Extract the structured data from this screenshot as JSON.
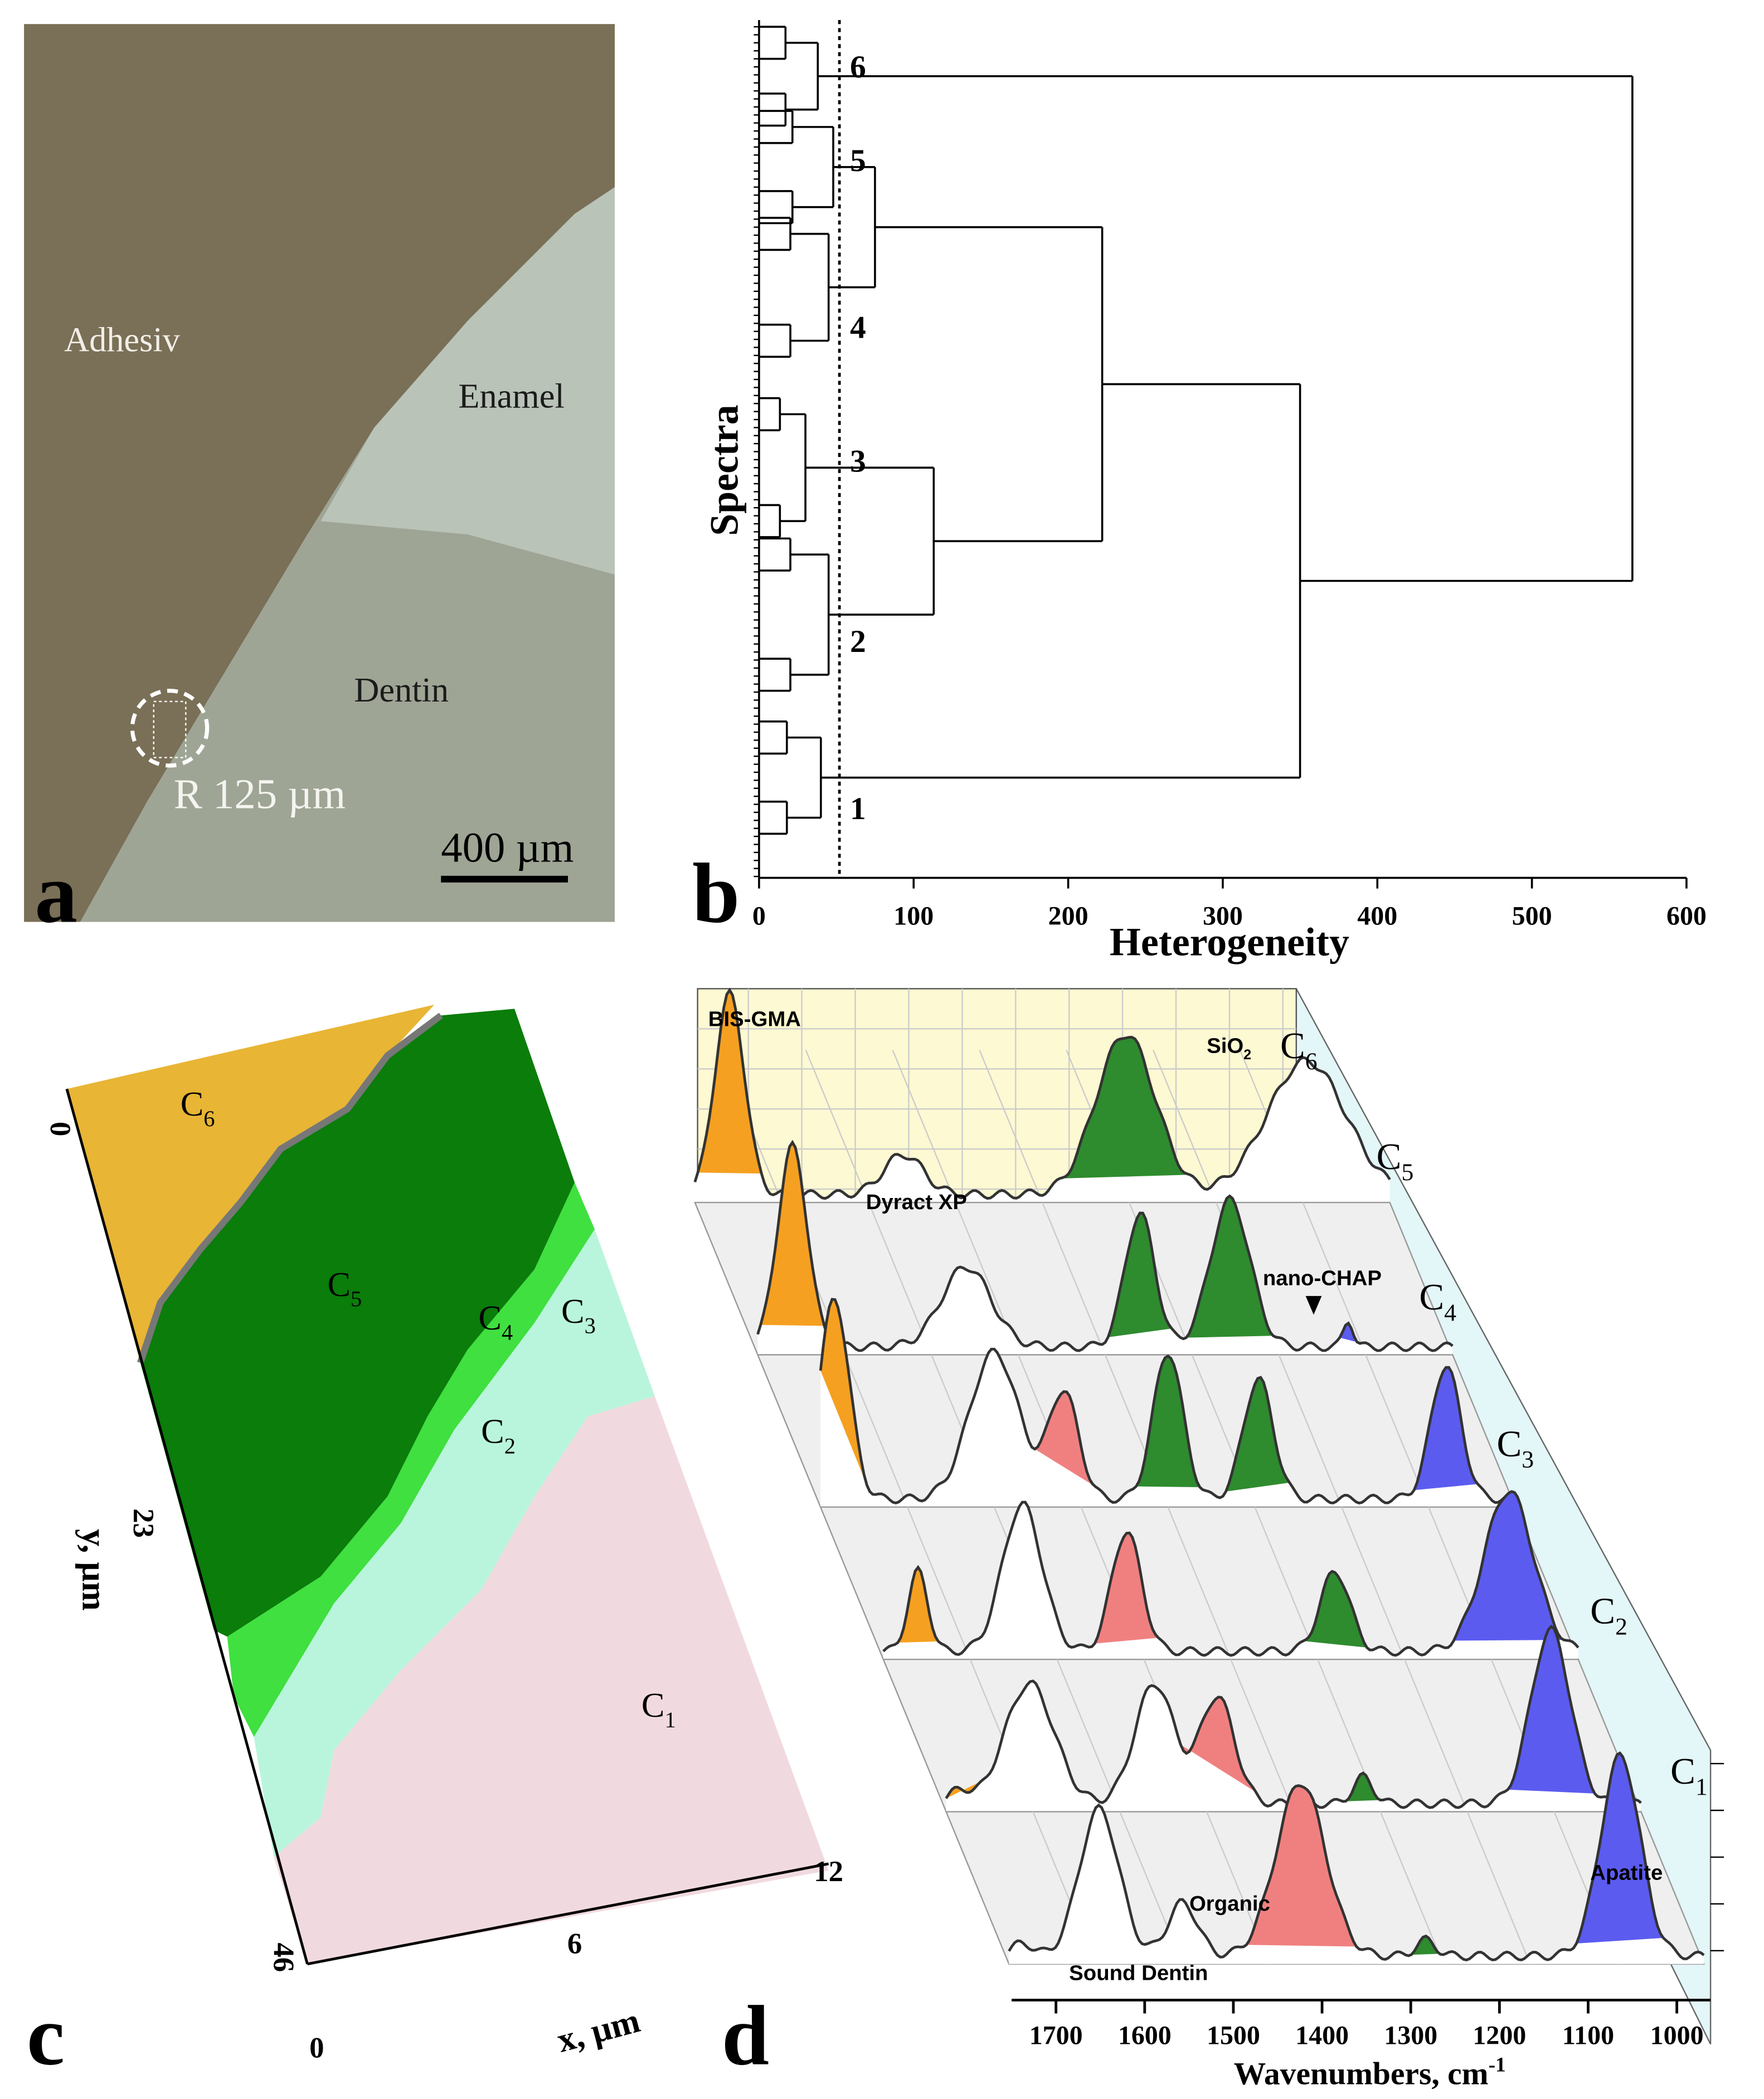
{
  "panels": {
    "a": {
      "label": "a",
      "adhesive": "Adhesiv",
      "enamel": "Enamel",
      "dentin": "Dentin",
      "radius": "R 125 µm",
      "scale_bar": "400 µm"
    },
    "b": {
      "label": "b",
      "x_label": "Heterogeneity",
      "y_label": "Spectra",
      "xlim": [
        0,
        600
      ],
      "xticks": [
        0,
        100,
        200,
        300,
        400,
        500,
        600
      ],
      "cutoff": 52,
      "clusters": [
        {
          "name": "1",
          "height": 40
        },
        {
          "name": "2",
          "height": 45
        },
        {
          "name": "3",
          "height": 30
        },
        {
          "name": "4",
          "height": 45
        },
        {
          "name": "5",
          "height": 48
        },
        {
          "name": "6",
          "height": 38
        }
      ],
      "merges": [
        75,
        113,
        222,
        350,
        565
      ]
    },
    "c": {
      "label": "c",
      "clusters": [
        {
          "base": "C",
          "sub": "1"
        },
        {
          "base": "C",
          "sub": "2"
        },
        {
          "base": "C",
          "sub": "3"
        },
        {
          "base": "C",
          "sub": "4"
        },
        {
          "base": "C",
          "sub": "5"
        },
        {
          "base": "C",
          "sub": "6"
        }
      ],
      "y_label": "y, µm",
      "x_label": "x, µm",
      "yticks": [
        0,
        23,
        46
      ],
      "xticks": [
        0,
        6,
        12
      ]
    },
    "d": {
      "label": "d",
      "xlim": [
        1750,
        962
      ],
      "xticks": [
        1700,
        1600,
        1500,
        1400,
        1300,
        1200,
        1100,
        1000
      ],
      "x_label": {
        "base": "Wavenumbers, cm",
        "sup": "-1"
      },
      "series_labels": [
        {
          "base": "C",
          "sub": "1"
        },
        {
          "base": "C",
          "sub": "2"
        },
        {
          "base": "C",
          "sub": "3"
        },
        {
          "base": "C",
          "sub": "4"
        },
        {
          "base": "C",
          "sub": "5"
        },
        {
          "base": "C",
          "sub": "6"
        }
      ],
      "annotations": {
        "bis_gma": "BIS-GMA",
        "sio2": {
          "base": "SiO",
          "sub": "2"
        },
        "dyract": "Dyract XP",
        "nano_chap": "nano-CHAP",
        "organic": "Organic",
        "apatite": "Apatite",
        "sound_dentin": "Sound Dentin"
      }
    }
  }
}
